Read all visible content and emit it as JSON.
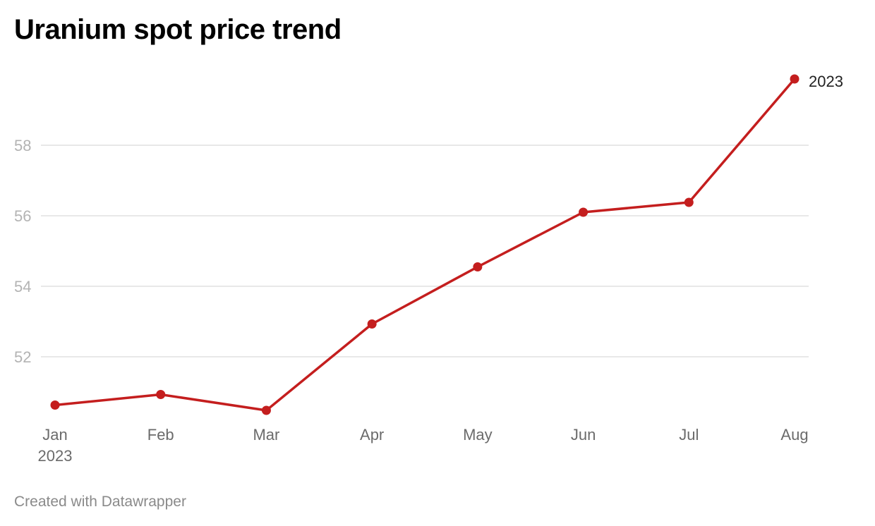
{
  "title": "Uranium spot price trend",
  "footer": "Created with Datawrapper",
  "colors": {
    "line": "#c41e1e",
    "grid": "#e0e0e0",
    "ytick": "#b3b3b3",
    "xtick": "#6b6b6b"
  },
  "chart_data": {
    "type": "line",
    "title": "Uranium spot price trend",
    "categories": [
      "Jan",
      "Feb",
      "Mar",
      "Apr",
      "May",
      "Jun",
      "Jul",
      "Aug"
    ],
    "x_sublabel": {
      "category": "Jan",
      "text": "2023"
    },
    "series": [
      {
        "name": "2023",
        "values": [
          50.63,
          50.93,
          50.48,
          52.93,
          54.55,
          56.1,
          56.38,
          59.88
        ]
      }
    ],
    "ylim": [
      50.2,
      60.2
    ],
    "yticks": [
      52,
      54,
      56,
      58
    ],
    "grid": true,
    "markers": true,
    "series_label_position": "end-of-line"
  }
}
